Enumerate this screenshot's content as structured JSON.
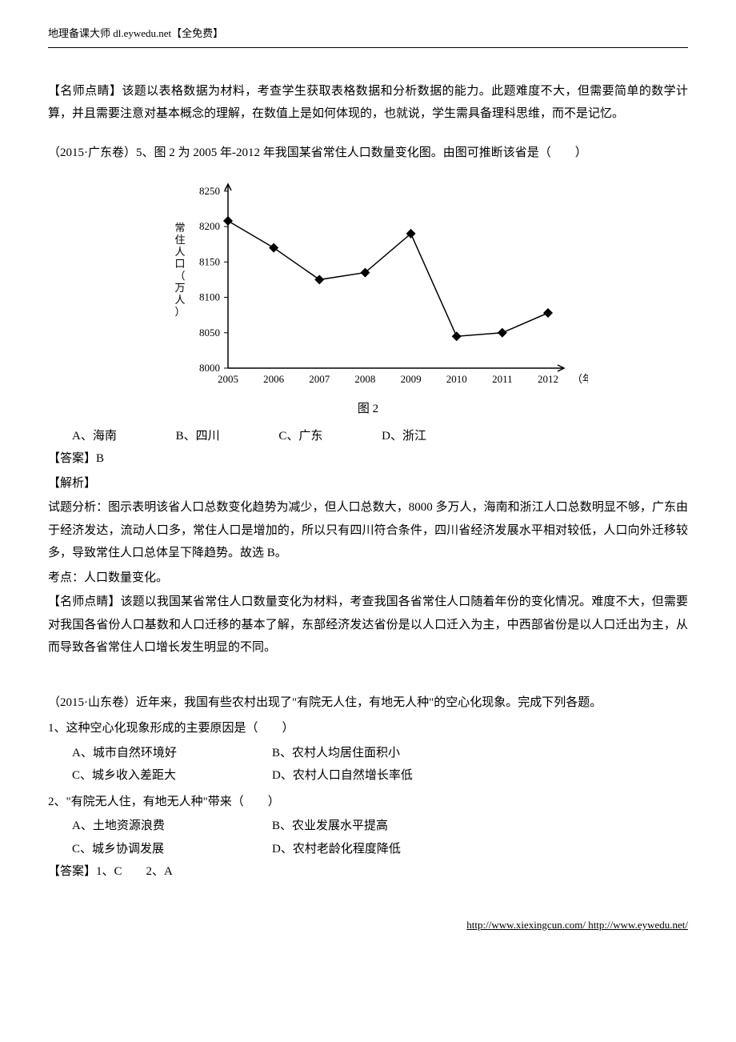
{
  "header": {
    "text": "地理备课大师  dl.eywedu.net【全免费】"
  },
  "commentary1": {
    "text": "【名师点睛】该题以表格数据为材料，考查学生获取表格数据和分析数据的能力。此题难度不大，但需要简单的数学计算，并且需要注意对基本概念的理解，在数值上是如何体现的，也就说，学生需具备理科思维，而不是记忆。"
  },
  "q1": {
    "source": "（2015·广东卷）5、图 2 为 2005 年-2012 年我国某省常住人口数量变化图。由图可推断该省是（　　）",
    "chart": {
      "type": "line",
      "ylabel": "常住人口（万人）",
      "xlabel_ticks": [
        "2005",
        "2006",
        "2007",
        "2008",
        "2009",
        "2010",
        "2011",
        "2012"
      ],
      "x_unit": "（年）",
      "yticks": [
        8000,
        8050,
        8100,
        8150,
        8200,
        8250
      ],
      "ylim": [
        8000,
        8260
      ],
      "points": [
        {
          "x": 2005,
          "y": 8208
        },
        {
          "x": 2006,
          "y": 8170
        },
        {
          "x": 2007,
          "y": 8125
        },
        {
          "x": 2008,
          "y": 8135
        },
        {
          "x": 2009,
          "y": 8190
        },
        {
          "x": 2010,
          "y": 8045
        },
        {
          "x": 2011,
          "y": 8050
        },
        {
          "x": 2012,
          "y": 8078
        }
      ],
      "marker": "diamond",
      "marker_size": 6,
      "line_color": "#000000",
      "axis_color": "#000000",
      "background_color": "#ffffff",
      "caption": "图 2"
    },
    "options": [
      {
        "label": "A、海南"
      },
      {
        "label": "B、四川"
      },
      {
        "label": "C、广东"
      },
      {
        "label": "D、浙江"
      }
    ],
    "answer": "【答案】B",
    "analysis_head": "【解析】",
    "analysis_body": "试题分析：图示表明该省人口总数变化趋势为减少，但人口总数大，8000 多万人，海南和浙江人口总数明显不够，广东由于经济发达，流动人口多，常住人口是增加的，所以只有四川符合条件，四川省经济发展水平相对较低，人口向外迁移较多，导致常住人口总体呈下降趋势。故选 B。",
    "kaodian": "考点：人口数量变化。",
    "commentary": "【名师点睛】该题以我国某省常住人口数量变化为材料，考查我国各省常住人口随着年份的变化情况。难度不大，但需要对我国各省份人口基数和人口迁移的基本了解，东部经济发达省份是以人口迁入为主，中西部省份是以人口迁出为主，从而导致各省常住人口增长发生明显的不同。"
  },
  "q2": {
    "source": "（2015·山东卷）近年来，我国有些农村出现了\"有院无人住，有地无人种\"的空心化现象。完成下列各题。",
    "sub1": {
      "stem": "1、这种空心化现象形成的主要原因是（　　）",
      "options": [
        {
          "label": "A、城市自然环境好"
        },
        {
          "label": "B、农村人均居住面积小"
        },
        {
          "label": "C、城乡收入差距大"
        },
        {
          "label": "D、农村人口自然增长率低"
        }
      ]
    },
    "sub2": {
      "stem": "2、\"有院无人住，有地无人种\"带来（　　）",
      "options": [
        {
          "label": "A、土地资源浪费"
        },
        {
          "label": "B、农业发展水平提高"
        },
        {
          "label": "C、城乡协调发展"
        },
        {
          "label": "D、农村老龄化程度降低"
        }
      ]
    },
    "answer": "【答案】1、C　　2、A"
  },
  "footer": {
    "text1": "http://www.xiexingcun.com/",
    "text2": " http://www.eywedu.net/"
  }
}
